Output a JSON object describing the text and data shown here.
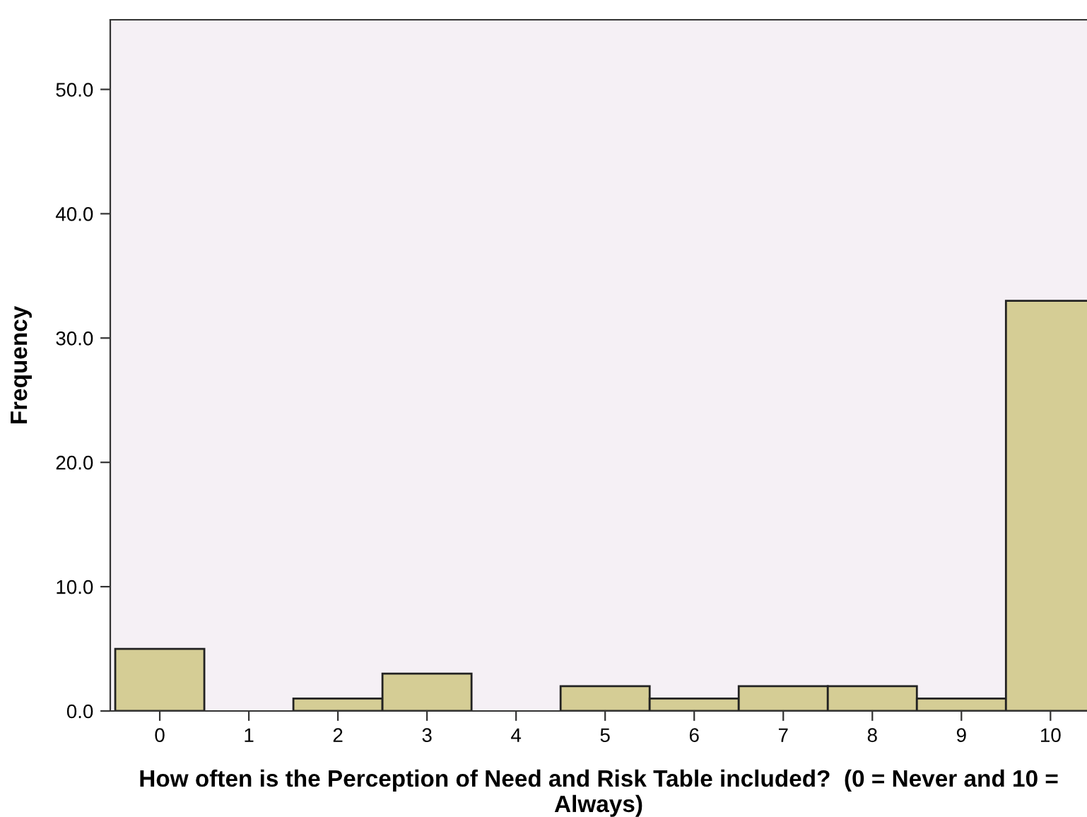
{
  "chart_data": {
    "type": "bar",
    "xlabel": "How often is the Perception of Need and Risk Table included?  (0 = Never and 10 = Always)",
    "ylabel": "Frequency",
    "categories": [
      "0",
      "1",
      "2",
      "3",
      "4",
      "5",
      "6",
      "7",
      "8",
      "9",
      "10"
    ],
    "values": [
      5,
      0,
      1,
      3,
      0,
      2,
      1,
      2,
      2,
      1,
      33
    ],
    "color": "#d5cd95",
    "ylim": [
      0,
      55.6
    ],
    "yticks": [
      {
        "value": 0,
        "label": "0.0"
      },
      {
        "value": 10,
        "label": "10.0"
      },
      {
        "value": 20,
        "label": "20.0"
      },
      {
        "value": 30,
        "label": "30.0"
      },
      {
        "value": 40,
        "label": "40.0"
      },
      {
        "value": 50,
        "label": "50.0"
      }
    ],
    "grid": false,
    "legend": false
  }
}
